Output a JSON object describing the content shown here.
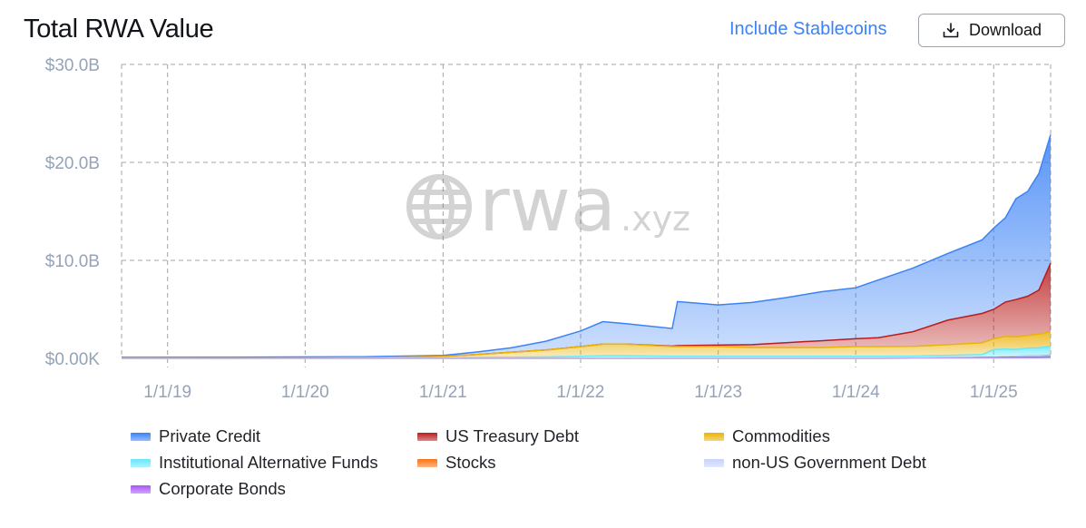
{
  "header": {
    "title": "Total RWA Value",
    "toggle_label": "Include Stablecoins",
    "download_label": "Download"
  },
  "watermark": {
    "brand": "rwa",
    "suffix": ".xyz"
  },
  "chart_data": {
    "type": "area",
    "stacked": true,
    "title": "Total RWA Value",
    "xlabel": "",
    "ylabel": "",
    "y_unit": "USD billions",
    "ylim": [
      0,
      30
    ],
    "y_ticks": [
      0,
      10,
      20,
      30
    ],
    "y_tick_labels": [
      "$0.00K",
      "$10.0B",
      "$20.0B",
      "$30.0B"
    ],
    "x_ticks": [
      "1/1/19",
      "1/1/20",
      "1/1/21",
      "1/1/22",
      "1/1/23",
      "1/1/24",
      "1/1/25"
    ],
    "x_range": [
      "2018-09-01",
      "2025-06-01"
    ],
    "grid": true,
    "legend_position": "bottom",
    "x": [
      "2018-09-01",
      "2019-06-01",
      "2020-06-01",
      "2021-01-01",
      "2021-04-01",
      "2021-07-01",
      "2021-10-01",
      "2022-01-01",
      "2022-03-01",
      "2022-05-01",
      "2022-09-01",
      "2022-09-15",
      "2023-01-01",
      "2023-04-01",
      "2023-07-01",
      "2023-10-01",
      "2024-01-01",
      "2024-03-01",
      "2024-06-01",
      "2024-09-01",
      "2024-12-01",
      "2025-01-01",
      "2025-02-01",
      "2025-03-01",
      "2025-04-01",
      "2025-05-01",
      "2025-06-01"
    ],
    "series": [
      {
        "name": "Corporate Bonds",
        "color": "#a855f7",
        "values": [
          0,
          0,
          0,
          0,
          0,
          0,
          0,
          0,
          0,
          0,
          0,
          0,
          0,
          0,
          0,
          0,
          0,
          0,
          0.02,
          0.05,
          0.08,
          0.08,
          0.1,
          0.1,
          0.12,
          0.12,
          0.15
        ]
      },
      {
        "name": "non-US Government Debt",
        "color": "#c7d2fe",
        "values": [
          0,
          0,
          0,
          0,
          0,
          0,
          0,
          0,
          0,
          0,
          0,
          0,
          0,
          0,
          0,
          0,
          0,
          0,
          0,
          0,
          0,
          0.02,
          0.05,
          0.1,
          0.1,
          0.12,
          0.12
        ]
      },
      {
        "name": "Stocks",
        "color": "#f97316",
        "values": [
          0,
          0,
          0,
          0,
          0,
          0,
          0,
          0,
          0,
          0,
          0,
          0,
          0,
          0,
          0,
          0,
          0,
          0,
          0,
          0,
          0,
          0,
          0,
          0,
          0.02,
          0.03,
          0.05
        ]
      },
      {
        "name": "Institutional Alternative Funds",
        "color": "#67e8f9",
        "values": [
          0,
          0.01,
          0.02,
          0.05,
          0.1,
          0.12,
          0.15,
          0.2,
          0.25,
          0.25,
          0.2,
          0.2,
          0.2,
          0.2,
          0.2,
          0.2,
          0.2,
          0.2,
          0.2,
          0.25,
          0.3,
          0.8,
          0.8,
          0.7,
          0.8,
          0.8,
          0.9
        ]
      },
      {
        "name": "Commodities",
        "color": "#eab308",
        "values": [
          0,
          0,
          0.05,
          0.15,
          0.3,
          0.5,
          0.7,
          1.0,
          1.2,
          1.2,
          1.0,
          1.0,
          1.0,
          0.9,
          0.9,
          0.9,
          1.0,
          1.0,
          1.0,
          1.1,
          1.2,
          1.1,
          1.3,
          1.3,
          1.3,
          1.4,
          1.5
        ]
      },
      {
        "name": "US Treasury Debt",
        "color": "#b91c1c",
        "values": [
          0,
          0,
          0,
          0,
          0,
          0,
          0,
          0,
          0,
          0,
          0.05,
          0.1,
          0.15,
          0.3,
          0.5,
          0.7,
          0.8,
          0.9,
          1.5,
          2.5,
          3.0,
          3.0,
          3.5,
          3.8,
          4.0,
          4.5,
          7.0
        ]
      },
      {
        "name": "Private Credit",
        "color": "#3b82f6",
        "values": [
          0.1,
          0.1,
          0.1,
          0.1,
          0.25,
          0.45,
          0.9,
          1.6,
          2.3,
          2.1,
          1.8,
          4.5,
          4.1,
          4.3,
          4.6,
          5.0,
          5.2,
          5.9,
          6.5,
          6.8,
          7.5,
          8.3,
          8.6,
          10.3,
          10.7,
          11.9,
          13.1
        ]
      }
    ],
    "legend_order": [
      "Private Credit",
      "US Treasury Debt",
      "Commodities",
      "Institutional Alternative Funds",
      "Stocks",
      "non-US Government Debt",
      "Corporate Bonds"
    ]
  }
}
